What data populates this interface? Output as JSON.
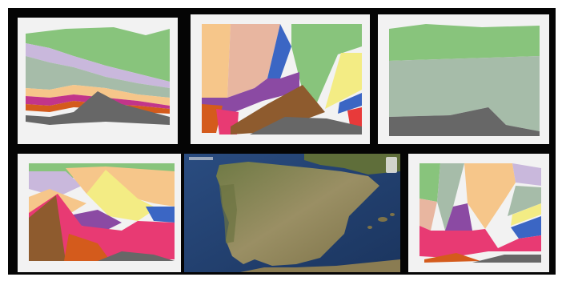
{
  "collage": {
    "background_color": "#050505",
    "tiles": [
      {
        "id": "stream-plot-a",
        "kind": "chart"
      },
      {
        "id": "stream-plot-b",
        "kind": "chart"
      },
      {
        "id": "stream-plot-c",
        "kind": "chart"
      },
      {
        "id": "stream-plot-d",
        "kind": "chart"
      },
      {
        "id": "satellite-map",
        "kind": "map"
      },
      {
        "id": "stream-plot-e",
        "kind": "chart"
      }
    ]
  },
  "palette": {
    "green": "#88c47c",
    "lilac": "#c9b8dc",
    "gray_green": "#a6bca9",
    "peach": "#f6c68a",
    "salmon": "#e8b6a0",
    "magenta": "#c2358a",
    "orange": "#d45b1c",
    "brown": "#8e5b2e",
    "pink": "#e83a73",
    "purple": "#8b4aa3",
    "blue": "#3b66c4",
    "yellow": "#f3ec84",
    "dark_gray": "#676767",
    "map_sea": "#22406e",
    "map_land": "#8f8a62"
  }
}
